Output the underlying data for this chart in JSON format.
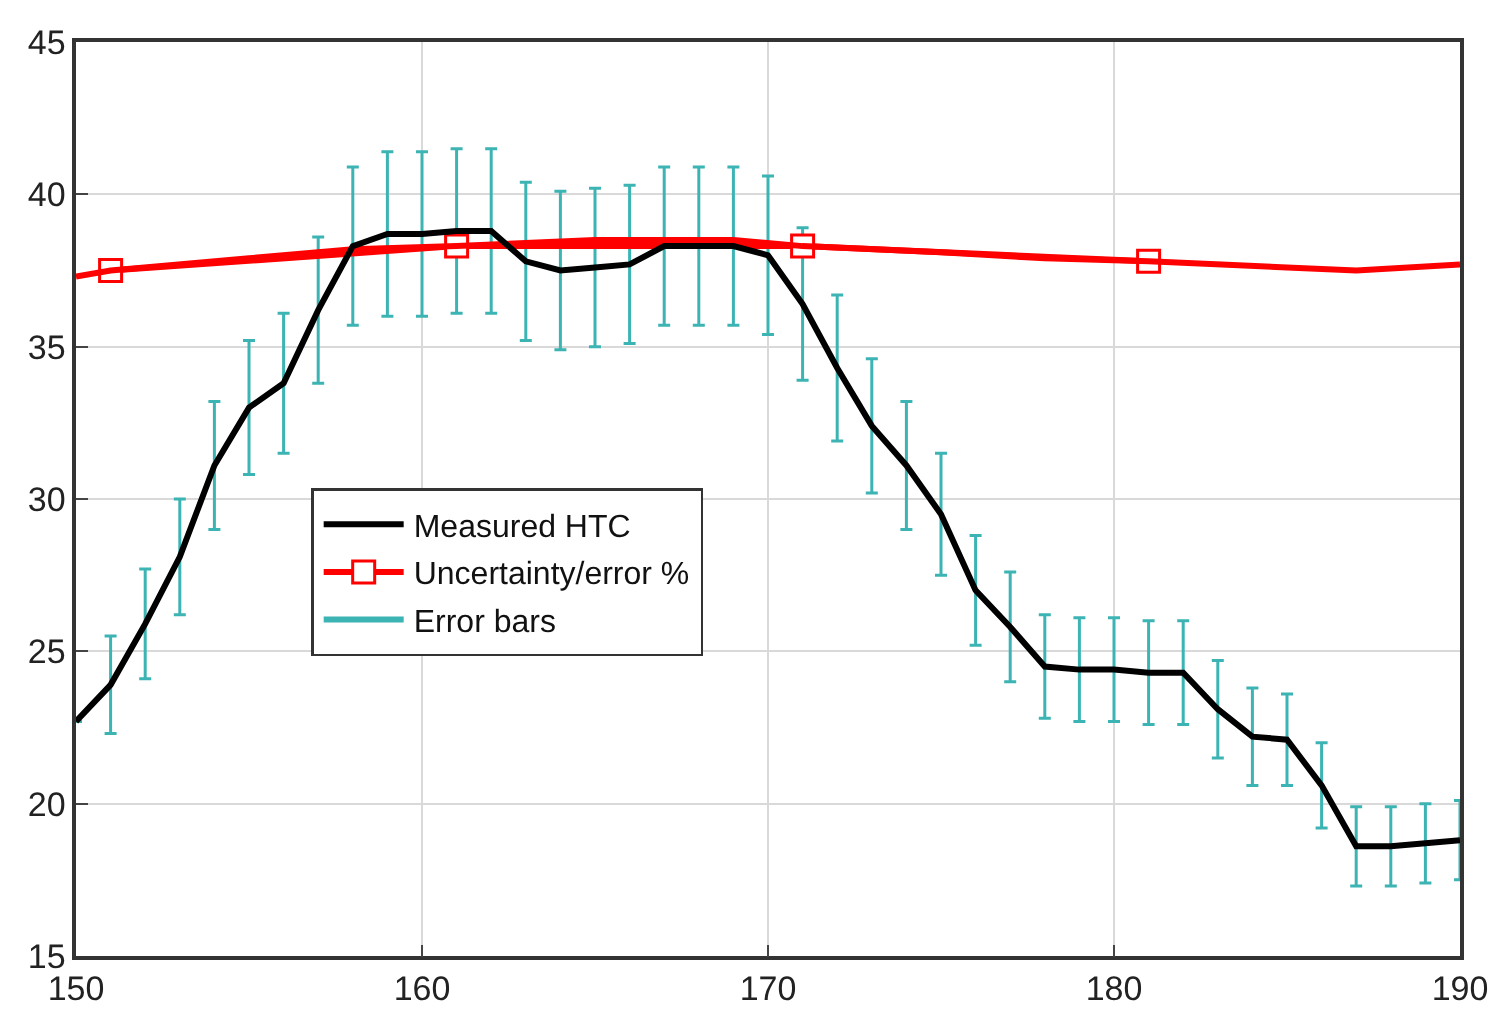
{
  "chart_data": {
    "type": "line",
    "x": [
      150,
      151,
      152,
      153,
      154,
      155,
      156,
      157,
      158,
      159,
      160,
      161,
      162,
      163,
      164,
      165,
      166,
      167,
      168,
      169,
      170,
      171,
      172,
      173,
      174,
      175,
      176,
      177,
      178,
      179,
      180,
      181,
      182,
      183,
      184,
      185,
      186,
      187,
      188,
      189,
      190
    ],
    "series": [
      {
        "name": "Measured HTC",
        "color": "#000000",
        "marker": "none",
        "values": [
          22.7,
          23.9,
          25.9,
          28.1,
          31.1,
          33.0,
          33.8,
          36.2,
          38.3,
          38.7,
          38.7,
          38.8,
          38.8,
          37.8,
          37.5,
          37.6,
          37.7,
          38.3,
          38.3,
          38.3,
          38.0,
          36.4,
          34.3,
          32.4,
          31.1,
          29.5,
          27.0,
          25.8,
          24.5,
          24.4,
          24.4,
          24.3,
          24.3,
          23.1,
          22.2,
          22.1,
          20.6,
          18.6,
          18.6,
          18.7,
          18.8
        ],
        "errors": [
          null,
          1.6,
          1.8,
          1.9,
          2.1,
          2.2,
          2.3,
          2.4,
          2.6,
          2.7,
          2.7,
          2.7,
          2.7,
          2.6,
          2.6,
          2.6,
          2.6,
          2.6,
          2.6,
          2.6,
          2.6,
          2.5,
          2.4,
          2.2,
          2.1,
          2.0,
          1.8,
          1.8,
          1.7,
          1.7,
          1.7,
          1.7,
          1.7,
          1.6,
          1.6,
          1.5,
          1.4,
          1.3,
          1.3,
          1.3,
          1.3
        ]
      },
      {
        "name": "Uncertainty/error %",
        "color": "#ff0000",
        "marker": "square",
        "x": [
          151,
          161,
          171,
          181
        ],
        "values": [
          37.5,
          38.3,
          38.3,
          37.8
        ]
      },
      {
        "color": "#ff0000",
        "marker": "none",
        "x": [
          150,
          151,
          155,
          158,
          161,
          165,
          169,
          171,
          175,
          178,
          181,
          185,
          187,
          190
        ],
        "values": [
          37.3,
          37.5,
          37.9,
          38.2,
          38.3,
          38.5,
          38.5,
          38.3,
          38.1,
          37.9,
          37.8,
          37.6,
          37.5,
          37.7
        ]
      },
      {
        "name": "Error bars",
        "color": "#3cb4b4",
        "marker": "none",
        "values": [
          null,
          null,
          null,
          null,
          null,
          null,
          null,
          null,
          null,
          null,
          null,
          null,
          null,
          null,
          null,
          null,
          null,
          null,
          null,
          null,
          null,
          null,
          null,
          null,
          null,
          null,
          null,
          null,
          null,
          null,
          null,
          null,
          null,
          null,
          null,
          null,
          null,
          null,
          null,
          null,
          null
        ]
      }
    ],
    "xlim": [
      150,
      190
    ],
    "xticks": [
      150,
      160,
      170,
      180,
      190
    ],
    "ylim": [
      15,
      45
    ],
    "yticks": [
      15,
      20,
      25,
      30,
      35,
      40,
      45
    ],
    "grid": true,
    "legend": "left",
    "line_style": "solid"
  }
}
